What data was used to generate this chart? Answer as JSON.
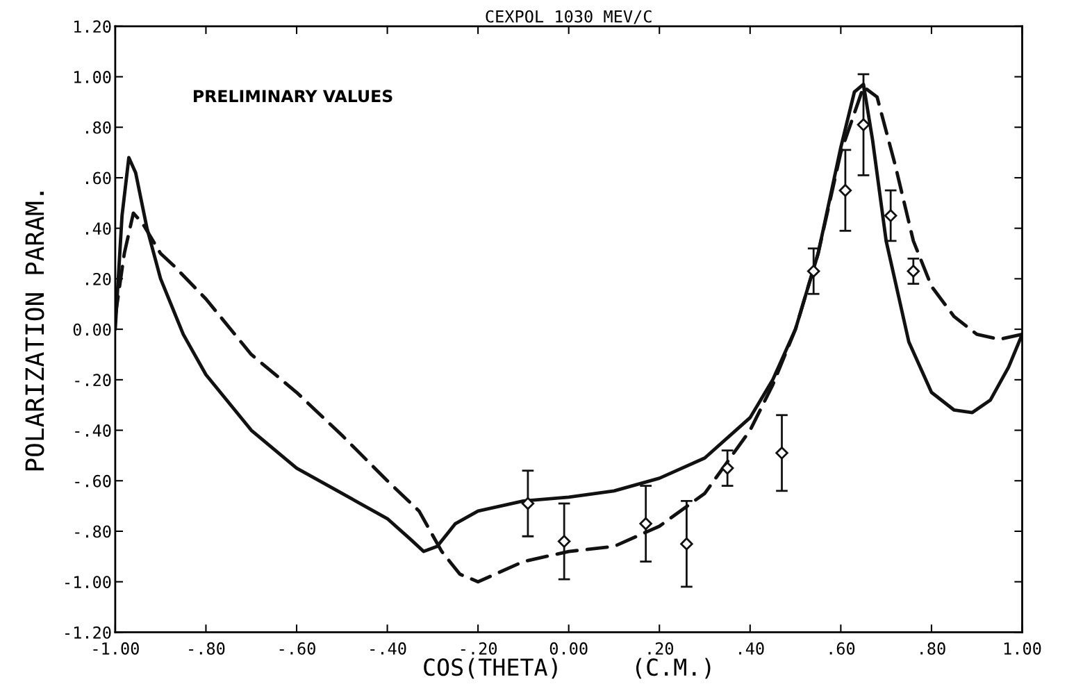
{
  "chart_data": {
    "type": "line",
    "title": "CEXPOL 1030 MEV/C",
    "xlabel": "COS(THETA)     (C.M.)",
    "ylabel": "POLARIZATION PARAM.",
    "annotations": [
      "PRELIMINARY VALUES"
    ],
    "xlim": [
      -1.0,
      1.0
    ],
    "ylim": [
      -1.2,
      1.2
    ],
    "xticks": [
      {
        "value": -1.0,
        "label": "-1.00"
      },
      {
        "value": -0.8,
        "label": "-.80"
      },
      {
        "value": -0.6,
        "label": "-.60"
      },
      {
        "value": -0.4,
        "label": "-.40"
      },
      {
        "value": -0.2,
        "label": "-.20"
      },
      {
        "value": 0.0,
        "label": "0.00"
      },
      {
        "value": 0.2,
        "label": ".20"
      },
      {
        "value": 0.4,
        "label": ".40"
      },
      {
        "value": 0.6,
        "label": ".60"
      },
      {
        "value": 0.8,
        "label": ".80"
      },
      {
        "value": 1.0,
        "label": "1.00"
      }
    ],
    "yticks": [
      {
        "value": -1.2,
        "label": "-1.20"
      },
      {
        "value": -1.0,
        "label": "-1.00"
      },
      {
        "value": -0.8,
        "label": "-.80"
      },
      {
        "value": -0.6,
        "label": "-.60"
      },
      {
        "value": -0.4,
        "label": "-.40"
      },
      {
        "value": -0.2,
        "label": "-.20"
      },
      {
        "value": 0.0,
        "label": "0.00"
      },
      {
        "value": 0.2,
        "label": ".20"
      },
      {
        "value": 0.4,
        "label": ".40"
      },
      {
        "value": 0.6,
        "label": ".60"
      },
      {
        "value": 0.8,
        "label": ".80"
      },
      {
        "value": 1.0,
        "label": "1.00"
      },
      {
        "value": 1.2,
        "label": "1.20"
      }
    ],
    "grid": false,
    "legend": false,
    "series": [
      {
        "line_style": "solid",
        "marker": "none",
        "color": "#111111",
        "x": [
          -1.0,
          -0.985,
          -0.97,
          -0.955,
          -0.93,
          -0.9,
          -0.85,
          -0.8,
          -0.7,
          -0.6,
          -0.5,
          -0.4,
          -0.35,
          -0.32,
          -0.29,
          -0.25,
          -0.2,
          -0.1,
          0.0,
          0.1,
          0.2,
          0.3,
          0.4,
          0.45,
          0.5,
          0.55,
          0.6,
          0.63,
          0.65,
          0.67,
          0.7,
          0.75,
          0.8,
          0.85,
          0.89,
          0.93,
          0.97,
          1.0
        ],
        "values": [
          0.0,
          0.45,
          0.68,
          0.62,
          0.4,
          0.2,
          -0.02,
          -0.18,
          -0.4,
          -0.55,
          -0.65,
          -0.75,
          -0.83,
          -0.88,
          -0.86,
          -0.77,
          -0.72,
          -0.68,
          -0.665,
          -0.64,
          -0.59,
          -0.51,
          -0.35,
          -0.2,
          0.0,
          0.3,
          0.72,
          0.94,
          0.97,
          0.75,
          0.35,
          -0.05,
          -0.25,
          -0.32,
          -0.33,
          -0.28,
          -0.15,
          -0.02
        ]
      },
      {
        "line_style": "dashed",
        "marker": "none",
        "color": "#111111",
        "x": [
          -1.0,
          -0.98,
          -0.96,
          -0.94,
          -0.9,
          -0.87,
          -0.8,
          -0.7,
          -0.6,
          -0.5,
          -0.4,
          -0.33,
          -0.28,
          -0.24,
          -0.2,
          -0.1,
          0.0,
          0.1,
          0.2,
          0.3,
          0.4,
          0.45,
          0.5,
          0.55,
          0.6,
          0.65,
          0.68,
          0.72,
          0.76,
          0.8,
          0.85,
          0.9,
          0.95,
          1.0
        ],
        "values": [
          0.05,
          0.3,
          0.46,
          0.42,
          0.3,
          0.25,
          0.12,
          -0.1,
          -0.25,
          -0.42,
          -0.6,
          -0.72,
          -0.88,
          -0.97,
          -1.0,
          -0.92,
          -0.88,
          -0.86,
          -0.78,
          -0.65,
          -0.4,
          -0.22,
          0.0,
          0.3,
          0.7,
          0.96,
          0.92,
          0.65,
          0.35,
          0.17,
          0.05,
          -0.02,
          -0.04,
          -0.02
        ]
      },
      {
        "type": "scatter",
        "marker": "diamond",
        "color": "#111111",
        "x": [
          -0.09,
          -0.01,
          0.17,
          0.26,
          0.35,
          0.47,
          0.54,
          0.61,
          0.65,
          0.71,
          0.76
        ],
        "values": [
          -0.69,
          -0.84,
          -0.77,
          -0.85,
          -0.55,
          -0.49,
          0.23,
          0.55,
          0.81,
          0.45,
          0.23
        ],
        "errors": [
          0.13,
          0.15,
          0.15,
          0.17,
          0.07,
          0.15,
          0.09,
          0.16,
          0.2,
          0.1,
          0.05
        ]
      }
    ]
  }
}
